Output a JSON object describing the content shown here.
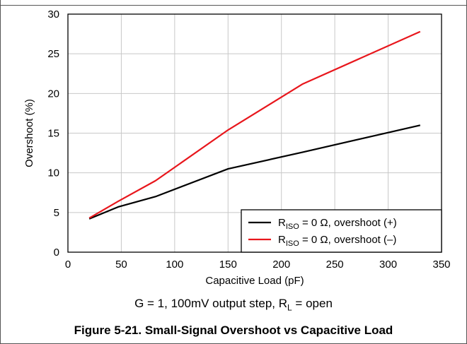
{
  "chart_data": {
    "type": "line",
    "title": "",
    "xlabel": "Capacitive Load (pF)",
    "ylabel": "Overshoot (%)",
    "xlim": [
      0,
      350
    ],
    "ylim": [
      0,
      30
    ],
    "x_ticks": [
      0,
      50,
      100,
      150,
      200,
      250,
      300,
      350
    ],
    "y_ticks": [
      0,
      5,
      10,
      15,
      20,
      25,
      30
    ],
    "grid": true,
    "legend_position": "bottom-right",
    "series": [
      {
        "name": "R<sub>ISO</sub> = 0 Ω, overshoot (+)",
        "legend": {
          "prefix": "R",
          "sub": "ISO",
          "suffix": " = 0 Ω, overshoot (+)"
        },
        "color": "#000000",
        "x": [
          20,
          47,
          82,
          150,
          220,
          330
        ],
        "y": [
          4.2,
          5.7,
          7.0,
          10.5,
          12.6,
          16.0
        ]
      },
      {
        "name": "R<sub>ISO</sub> = 0 Ω, overshoot (–)",
        "legend": {
          "prefix": "R",
          "sub": "ISO",
          "suffix": " = 0 Ω, overshoot (–)"
        },
        "color": "#e8161c",
        "x": [
          20,
          47,
          82,
          150,
          220,
          330
        ],
        "y": [
          4.3,
          6.4,
          9.0,
          15.4,
          21.2,
          27.8
        ]
      }
    ]
  },
  "conditions": "G = 1, 100mV output step, R<sub>L</sub> = open",
  "conditions_parts": {
    "prefix": "G = 1, 100mV output step, R",
    "sub": "L",
    "suffix": " = open"
  },
  "figure_caption": "Figure 5-21. Small-Signal Overshoot vs Capacitive Load"
}
